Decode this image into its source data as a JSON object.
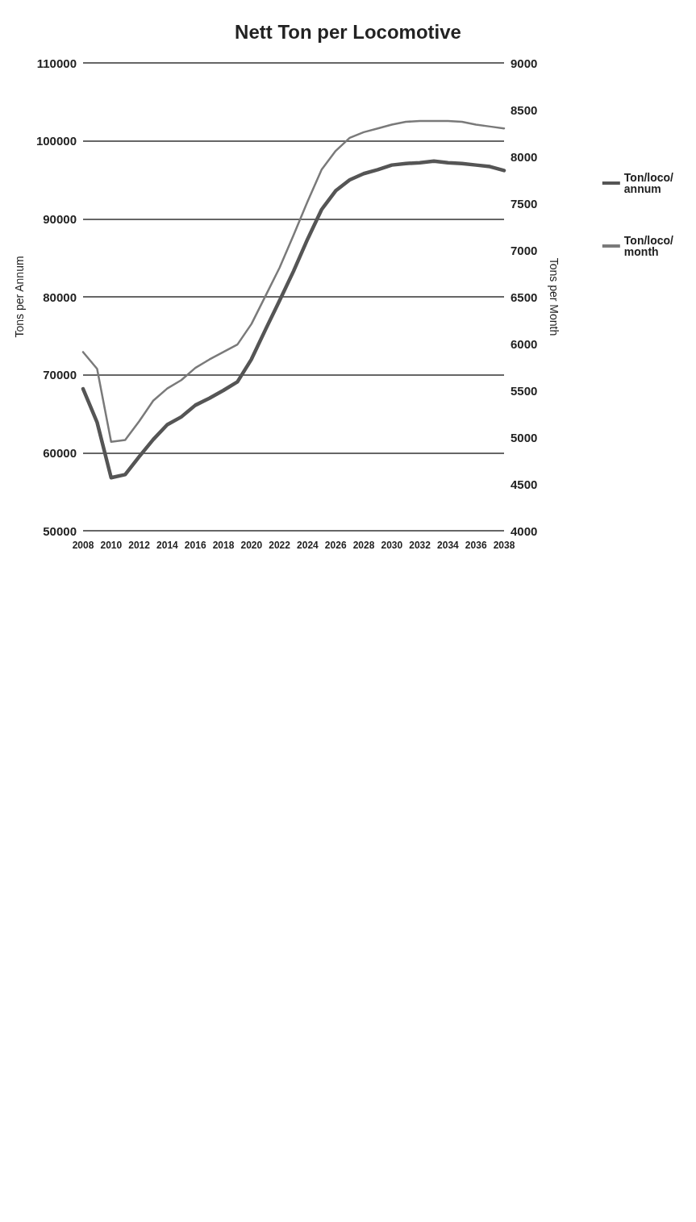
{
  "chart_data": {
    "type": "line",
    "title": "Nett Ton per Locomotive",
    "ylabel": "Tons per Annum",
    "y2label": "Tons per Month",
    "x": [
      2008,
      2009,
      2010,
      2011,
      2012,
      2013,
      2014,
      2015,
      2016,
      2017,
      2018,
      2019,
      2020,
      2021,
      2022,
      2023,
      2024,
      2025,
      2026,
      2027,
      2028,
      2029,
      2030,
      2031,
      2032,
      2033,
      2034,
      2035,
      2036,
      2037,
      2038
    ],
    "series": [
      {
        "name": "Ton/loco/annum",
        "color": "#555555",
        "values": [
          68200,
          63900,
          56800,
          57200,
          59500,
          61700,
          63600,
          64600,
          66100,
          67000,
          68000,
          69100,
          72000,
          75800,
          79500,
          83300,
          87400,
          91200,
          93600,
          95000,
          95800,
          96300,
          96900,
          97100,
          97200,
          97400,
          97200,
          97100,
          96900,
          96700,
          96200
        ]
      },
      {
        "name": "Ton/loco/month",
        "color": "#7a7a7a",
        "axis": "y2",
        "values": [
          5910,
          5730,
          4950,
          4970,
          5170,
          5390,
          5520,
          5610,
          5740,
          5830,
          5910,
          5990,
          6210,
          6510,
          6810,
          7160,
          7520,
          7860,
          8060,
          8200,
          8260,
          8300,
          8340,
          8370,
          8380,
          8380,
          8380,
          8370,
          8340,
          8320,
          8300
        ]
      }
    ],
    "xlim": [
      2008,
      2038
    ],
    "xticks": [
      2008,
      2010,
      2012,
      2014,
      2016,
      2018,
      2020,
      2022,
      2024,
      2026,
      2028,
      2030,
      2032,
      2034,
      2036,
      2038
    ],
    "ylim": [
      50000,
      110000
    ],
    "yticks": [
      50000,
      60000,
      70000,
      80000,
      90000,
      100000,
      110000
    ],
    "y2lim": [
      4000,
      9000
    ],
    "y2ticks": [
      4000,
      4500,
      5000,
      5500,
      6000,
      6500,
      7000,
      7500,
      8000,
      8500,
      9000
    ],
    "grid": "y",
    "legend": "right",
    "marker": "none",
    "line_style": "solid"
  }
}
